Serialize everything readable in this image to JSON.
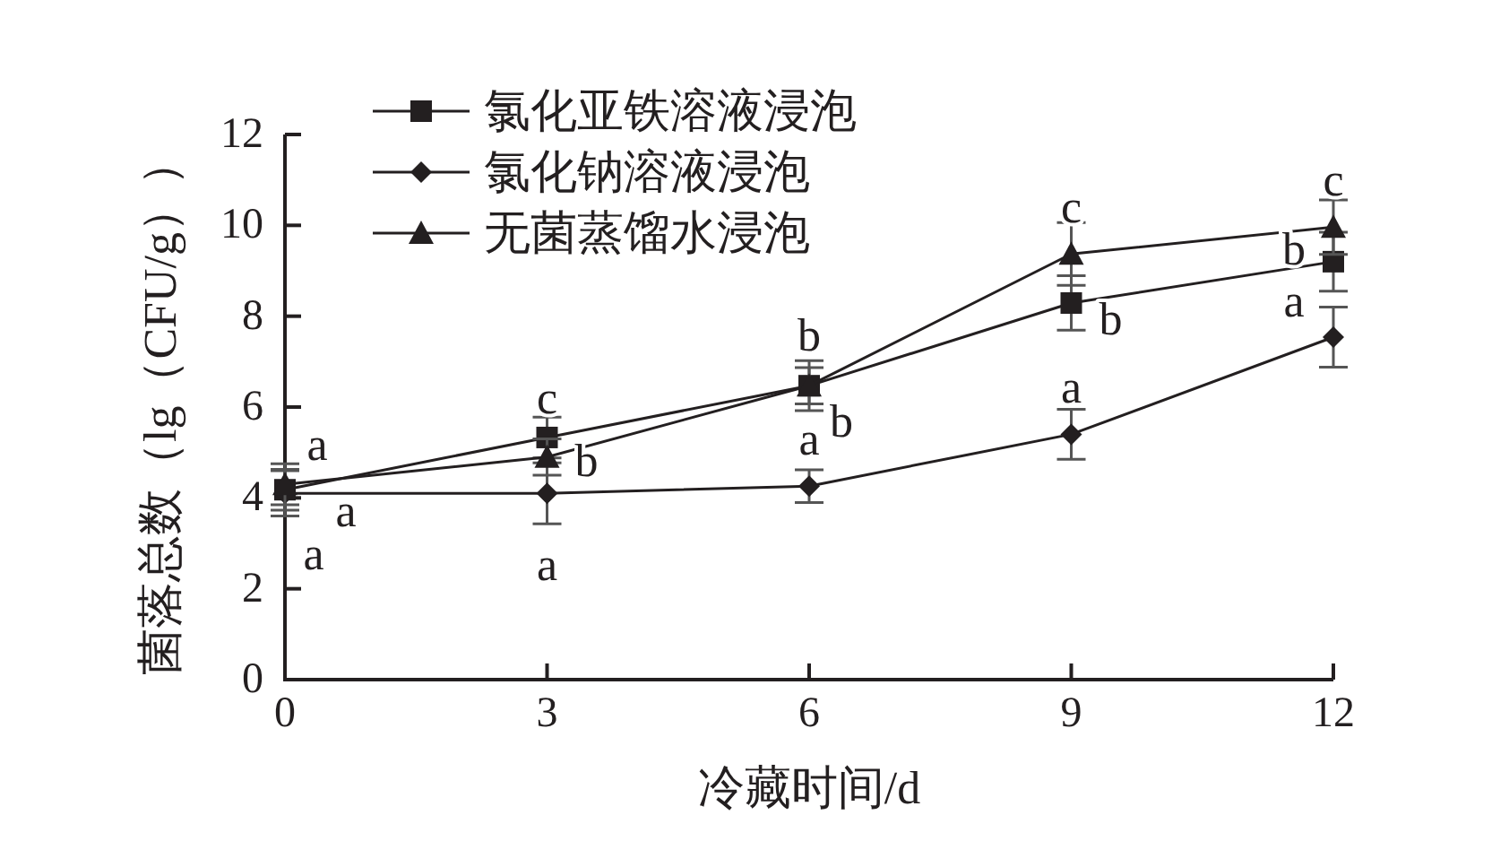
{
  "chart_data": {
    "type": "line",
    "xlabel": "冷藏时间/d",
    "ylabel": "菌落总数（lg（CFU/g））",
    "x": [
      0,
      3,
      6,
      9,
      12
    ],
    "xlim": [
      0,
      12
    ],
    "xticks": [
      0,
      3,
      6,
      9,
      12
    ],
    "ylim": [
      0,
      12
    ],
    "yticks": [
      0,
      2,
      4,
      6,
      8,
      10,
      12
    ],
    "grid": false,
    "legend": "top left",
    "line_style": "solid",
    "series": [
      {
        "name": "氯化亚铁溶液浸泡",
        "color": "#231f20",
        "marker": "square",
        "values": [
          4.18,
          5.33,
          6.47,
          8.29,
          9.2
        ],
        "errors": [
          0.45,
          0.45,
          0.55,
          0.6,
          0.65
        ]
      },
      {
        "name": "氯化钠溶液浸泡",
        "color": "#231f20",
        "marker": "diamond",
        "values": [
          4.1,
          4.1,
          4.26,
          5.4,
          7.54
        ],
        "errors": [
          0.5,
          0.67,
          0.36,
          0.55,
          0.66
        ]
      },
      {
        "name": "无菌蒸馏水浸泡",
        "color": "#231f20",
        "marker": "triangle",
        "values": [
          4.3,
          4.9,
          6.47,
          9.37,
          9.96
        ],
        "errors": [
          0.45,
          0.4,
          0.4,
          0.69,
          0.6
        ]
      }
    ],
    "annotations": [
      {
        "text": "a",
        "x": 0,
        "y": 4.3
      },
      {
        "text": "a",
        "x": 0,
        "y": 4.18
      },
      {
        "text": "a",
        "x": 0,
        "y": 4.1
      },
      {
        "text": "c",
        "x": 3,
        "y": 5.33
      },
      {
        "text": "b",
        "x": 3,
        "y": 4.9
      },
      {
        "text": "a",
        "x": 3,
        "y": 4.1
      },
      {
        "text": "b",
        "x": 6,
        "y": 6.47
      },
      {
        "text": "b",
        "x": 6,
        "y": 6.47
      },
      {
        "text": "a",
        "x": 6,
        "y": 4.26
      },
      {
        "text": "c",
        "x": 9,
        "y": 9.37
      },
      {
        "text": "b",
        "x": 9,
        "y": 8.29
      },
      {
        "text": "a",
        "x": 9,
        "y": 5.4
      },
      {
        "text": "c",
        "x": 12,
        "y": 9.96
      },
      {
        "text": "b",
        "x": 12,
        "y": 9.2
      },
      {
        "text": "a",
        "x": 12,
        "y": 7.54
      }
    ]
  }
}
